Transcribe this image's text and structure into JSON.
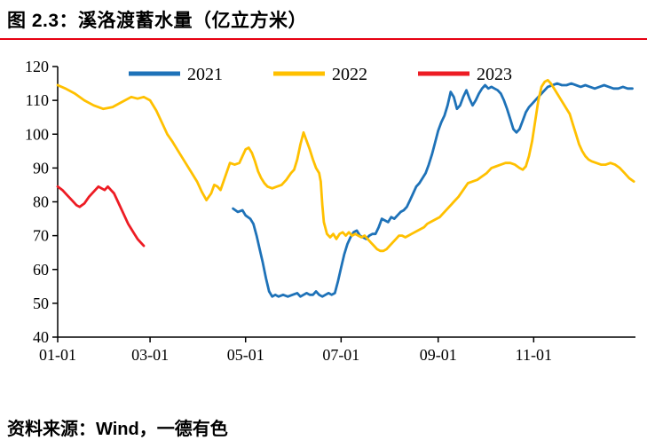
{
  "header": {
    "title": "图 2.3：溪洛渡蓄水量（亿立方米）"
  },
  "footer": {
    "source": "资料来源：Wind，一德有色"
  },
  "colors": {
    "accent_rule": "#e60012",
    "axis": "#000000",
    "series_2021": "#1e72b8",
    "series_2022": "#ffc000",
    "series_2023": "#ed1c24"
  },
  "chart_data": {
    "type": "line",
    "title": "溪洛渡蓄水量（亿立方米）",
    "grid": false,
    "legend_position": "top",
    "x_axis": {
      "domain": [
        1,
        370
      ],
      "tick_days": [
        1,
        60,
        121,
        182,
        244,
        305
      ],
      "tick_labels": [
        "01-01",
        "03-01",
        "05-01",
        "07-01",
        "09-01",
        "11-01"
      ]
    },
    "y_axis": {
      "domain": [
        40,
        120
      ],
      "ticks": [
        40,
        50,
        60,
        70,
        80,
        90,
        100,
        110,
        120
      ]
    },
    "series": [
      {
        "name": "2021",
        "color": "#1e72b8",
        "points": [
          [
            113,
            78
          ],
          [
            116,
            77
          ],
          [
            119,
            77.5
          ],
          [
            121,
            76
          ],
          [
            124,
            75
          ],
          [
            126,
            73.5
          ],
          [
            128,
            70
          ],
          [
            130,
            66
          ],
          [
            132,
            62
          ],
          [
            134,
            57.5
          ],
          [
            136,
            53.5
          ],
          [
            138,
            52
          ],
          [
            140,
            52.5
          ],
          [
            142,
            52
          ],
          [
            145,
            52.5
          ],
          [
            148,
            52
          ],
          [
            151,
            52.5
          ],
          [
            154,
            53
          ],
          [
            156,
            52
          ],
          [
            158,
            52.5
          ],
          [
            160,
            53
          ],
          [
            162,
            52.5
          ],
          [
            164,
            52.5
          ],
          [
            166,
            53.5
          ],
          [
            168,
            52.5
          ],
          [
            170,
            52
          ],
          [
            172,
            52.5
          ],
          [
            174,
            53
          ],
          [
            176,
            52.5
          ],
          [
            178,
            53
          ],
          [
            180,
            56.5
          ],
          [
            182,
            60.5
          ],
          [
            184,
            64.5
          ],
          [
            186,
            67.5
          ],
          [
            188,
            69.5
          ],
          [
            190,
            71
          ],
          [
            192,
            71.5
          ],
          [
            194,
            70
          ],
          [
            196,
            69.5
          ],
          [
            198,
            69
          ],
          [
            200,
            70
          ],
          [
            202,
            70.5
          ],
          [
            204,
            70.5
          ],
          [
            206,
            72.5
          ],
          [
            208,
            75
          ],
          [
            210,
            74.5
          ],
          [
            212,
            74
          ],
          [
            214,
            75.5
          ],
          [
            216,
            75
          ],
          [
            218,
            76
          ],
          [
            220,
            77
          ],
          [
            222,
            77.5
          ],
          [
            224,
            78.5
          ],
          [
            226,
            80.5
          ],
          [
            228,
            82.5
          ],
          [
            230,
            84.5
          ],
          [
            232,
            85.5
          ],
          [
            234,
            87
          ],
          [
            236,
            88.5
          ],
          [
            238,
            91
          ],
          [
            240,
            94
          ],
          [
            242,
            97.5
          ],
          [
            244,
            101
          ],
          [
            246,
            103.5
          ],
          [
            248,
            105.5
          ],
          [
            250,
            108.5
          ],
          [
            252,
            112.5
          ],
          [
            254,
            111
          ],
          [
            256,
            107.5
          ],
          [
            258,
            108.5
          ],
          [
            260,
            111
          ],
          [
            262,
            113
          ],
          [
            264,
            110.5
          ],
          [
            266,
            108.5
          ],
          [
            268,
            110
          ],
          [
            270,
            112
          ],
          [
            272,
            113.5
          ],
          [
            274,
            114.5
          ],
          [
            276,
            113.5
          ],
          [
            278,
            114
          ],
          [
            280,
            113.5
          ],
          [
            282,
            113
          ],
          [
            284,
            112
          ],
          [
            286,
            110
          ],
          [
            288,
            107.5
          ],
          [
            290,
            104.5
          ],
          [
            292,
            101.5
          ],
          [
            294,
            100.5
          ],
          [
            296,
            101.5
          ],
          [
            298,
            104
          ],
          [
            300,
            106.5
          ],
          [
            302,
            108
          ],
          [
            304,
            109
          ],
          [
            306,
            110
          ],
          [
            308,
            111
          ],
          [
            310,
            112
          ],
          [
            312,
            113
          ],
          [
            314,
            114
          ],
          [
            317,
            114.5
          ],
          [
            320,
            115
          ],
          [
            323,
            114.5
          ],
          [
            326,
            114.5
          ],
          [
            329,
            115
          ],
          [
            332,
            114.5
          ],
          [
            335,
            114
          ],
          [
            338,
            114.5
          ],
          [
            341,
            114
          ],
          [
            344,
            113.5
          ],
          [
            347,
            114
          ],
          [
            350,
            114.5
          ],
          [
            353,
            114
          ],
          [
            356,
            113.5
          ],
          [
            359,
            113.5
          ],
          [
            362,
            114
          ],
          [
            365,
            113.5
          ],
          [
            368,
            113.5
          ]
        ]
      },
      {
        "name": "2022",
        "color": "#ffc000",
        "points": [
          [
            1,
            114.5
          ],
          [
            6,
            113.5
          ],
          [
            12,
            112
          ],
          [
            18,
            110
          ],
          [
            24,
            108.5
          ],
          [
            30,
            107.5
          ],
          [
            36,
            108
          ],
          [
            42,
            109.5
          ],
          [
            48,
            111
          ],
          [
            52,
            110.5
          ],
          [
            56,
            111
          ],
          [
            60,
            110
          ],
          [
            64,
            107
          ],
          [
            68,
            103
          ],
          [
            71,
            100
          ],
          [
            74,
            98
          ],
          [
            78,
            95
          ],
          [
            82,
            92
          ],
          [
            86,
            89
          ],
          [
            90,
            86
          ],
          [
            93,
            83
          ],
          [
            96,
            80.5
          ],
          [
            99,
            82.5
          ],
          [
            101,
            85
          ],
          [
            103,
            84.5
          ],
          [
            105,
            83.5
          ],
          [
            108,
            87.5
          ],
          [
            111,
            91.5
          ],
          [
            114,
            91
          ],
          [
            117,
            91.5
          ],
          [
            119,
            93.5
          ],
          [
            121,
            95.5
          ],
          [
            123,
            96
          ],
          [
            125,
            94.5
          ],
          [
            127,
            92
          ],
          [
            129,
            89
          ],
          [
            131,
            87
          ],
          [
            133,
            85.5
          ],
          [
            135,
            84.5
          ],
          [
            138,
            84
          ],
          [
            141,
            84.5
          ],
          [
            144,
            85
          ],
          [
            147,
            86.5
          ],
          [
            150,
            88.5
          ],
          [
            152,
            89.5
          ],
          [
            154,
            92.5
          ],
          [
            156,
            97
          ],
          [
            158,
            100.5
          ],
          [
            160,
            98
          ],
          [
            162,
            95.5
          ],
          [
            164,
            92.5
          ],
          [
            166,
            90
          ],
          [
            168,
            88.5
          ],
          [
            169,
            86
          ],
          [
            170,
            79
          ],
          [
            171,
            74
          ],
          [
            173,
            70.5
          ],
          [
            175,
            69.5
          ],
          [
            177,
            70.5
          ],
          [
            179,
            69
          ],
          [
            181,
            70.5
          ],
          [
            183,
            71
          ],
          [
            185,
            70
          ],
          [
            187,
            71
          ],
          [
            189,
            70
          ],
          [
            191,
            70.5
          ],
          [
            193,
            70
          ],
          [
            195,
            69.5
          ],
          [
            197,
            70
          ],
          [
            199,
            69
          ],
          [
            201,
            68
          ],
          [
            203,
            67
          ],
          [
            205,
            66
          ],
          [
            207,
            65.5
          ],
          [
            209,
            65.5
          ],
          [
            211,
            66
          ],
          [
            213,
            67
          ],
          [
            215,
            68
          ],
          [
            217,
            69
          ],
          [
            219,
            70
          ],
          [
            221,
            70
          ],
          [
            223,
            69.5
          ],
          [
            225,
            70
          ],
          [
            227,
            70.5
          ],
          [
            229,
            71
          ],
          [
            231,
            71.5
          ],
          [
            233,
            72
          ],
          [
            235,
            72.5
          ],
          [
            237,
            73.5
          ],
          [
            239,
            74
          ],
          [
            241,
            74.5
          ],
          [
            243,
            75
          ],
          [
            245,
            75.5
          ],
          [
            248,
            77
          ],
          [
            251,
            78.5
          ],
          [
            254,
            80
          ],
          [
            257,
            81.5
          ],
          [
            260,
            83.5
          ],
          [
            263,
            85.5
          ],
          [
            266,
            86
          ],
          [
            269,
            86.5
          ],
          [
            272,
            87.5
          ],
          [
            275,
            88.5
          ],
          [
            278,
            90
          ],
          [
            281,
            90.5
          ],
          [
            284,
            91
          ],
          [
            287,
            91.5
          ],
          [
            290,
            91.5
          ],
          [
            293,
            91
          ],
          [
            296,
            90
          ],
          [
            298,
            89.5
          ],
          [
            300,
            90.5
          ],
          [
            302,
            93.5
          ],
          [
            304,
            98
          ],
          [
            306,
            104
          ],
          [
            308,
            110
          ],
          [
            310,
            114
          ],
          [
            312,
            115.5
          ],
          [
            314,
            116
          ],
          [
            316,
            115
          ],
          [
            318,
            113.5
          ],
          [
            320,
            112
          ],
          [
            322,
            110.5
          ],
          [
            324,
            109
          ],
          [
            326,
            107.5
          ],
          [
            328,
            106
          ],
          [
            330,
            103
          ],
          [
            332,
            100
          ],
          [
            334,
            97
          ],
          [
            336,
            95
          ],
          [
            338,
            93.5
          ],
          [
            340,
            92.5
          ],
          [
            342,
            92
          ],
          [
            345,
            91.5
          ],
          [
            348,
            91
          ],
          [
            351,
            91
          ],
          [
            354,
            91.5
          ],
          [
            357,
            91
          ],
          [
            360,
            90
          ],
          [
            363,
            88.5
          ],
          [
            366,
            87
          ],
          [
            369,
            86
          ]
        ]
      },
      {
        "name": "2023",
        "color": "#ed1c24",
        "points": [
          [
            1,
            84.5
          ],
          [
            4,
            83.5
          ],
          [
            7,
            82
          ],
          [
            10,
            80.5
          ],
          [
            13,
            79
          ],
          [
            15,
            78.5
          ],
          [
            18,
            79.5
          ],
          [
            21,
            81.5
          ],
          [
            24,
            83
          ],
          [
            27,
            84.5
          ],
          [
            29,
            84
          ],
          [
            31,
            83.5
          ],
          [
            33,
            84.5
          ],
          [
            35,
            83.5
          ],
          [
            37,
            82.5
          ],
          [
            40,
            79.5
          ],
          [
            43,
            76.5
          ],
          [
            46,
            73.5
          ],
          [
            48,
            72
          ],
          [
            50,
            70.5
          ],
          [
            52,
            69
          ],
          [
            54,
            68
          ],
          [
            56,
            67
          ]
        ]
      }
    ]
  }
}
